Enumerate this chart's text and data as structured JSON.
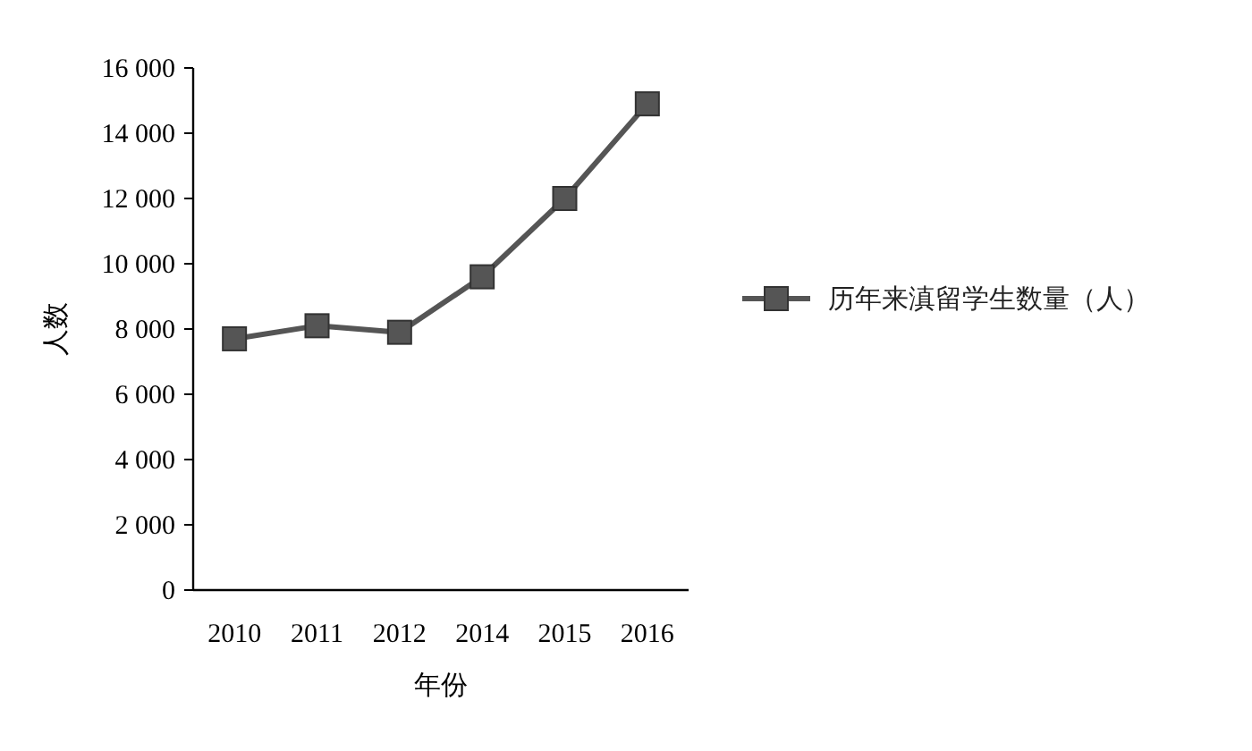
{
  "chart_data": {
    "type": "line",
    "xlabel": "年份",
    "ylabel": "人数",
    "categories": [
      "2010",
      "2011",
      "2012",
      "2014",
      "2015",
      "2016"
    ],
    "series": [
      {
        "name": "历年来滇留学生数量（人）",
        "color": "#555555",
        "values": [
          7700,
          8100,
          7900,
          9600,
          12000,
          14900
        ]
      }
    ],
    "ylim": [
      0,
      16000
    ],
    "yticks": [
      0,
      {
        "value": 2000,
        "label": "2 000"
      },
      {
        "value": 4000,
        "label": "4 000"
      },
      {
        "value": 6000,
        "label": "6 000"
      },
      {
        "value": 8000,
        "label": "8 000"
      },
      {
        "value": 10000,
        "label": "10 000"
      },
      {
        "value": 12000,
        "label": "12 000"
      },
      {
        "value": 14000,
        "label": "14 000"
      },
      {
        "value": 16000,
        "label": "16 000"
      }
    ],
    "grid": false,
    "legend": "right",
    "marker": "square",
    "line_style": "solid"
  }
}
